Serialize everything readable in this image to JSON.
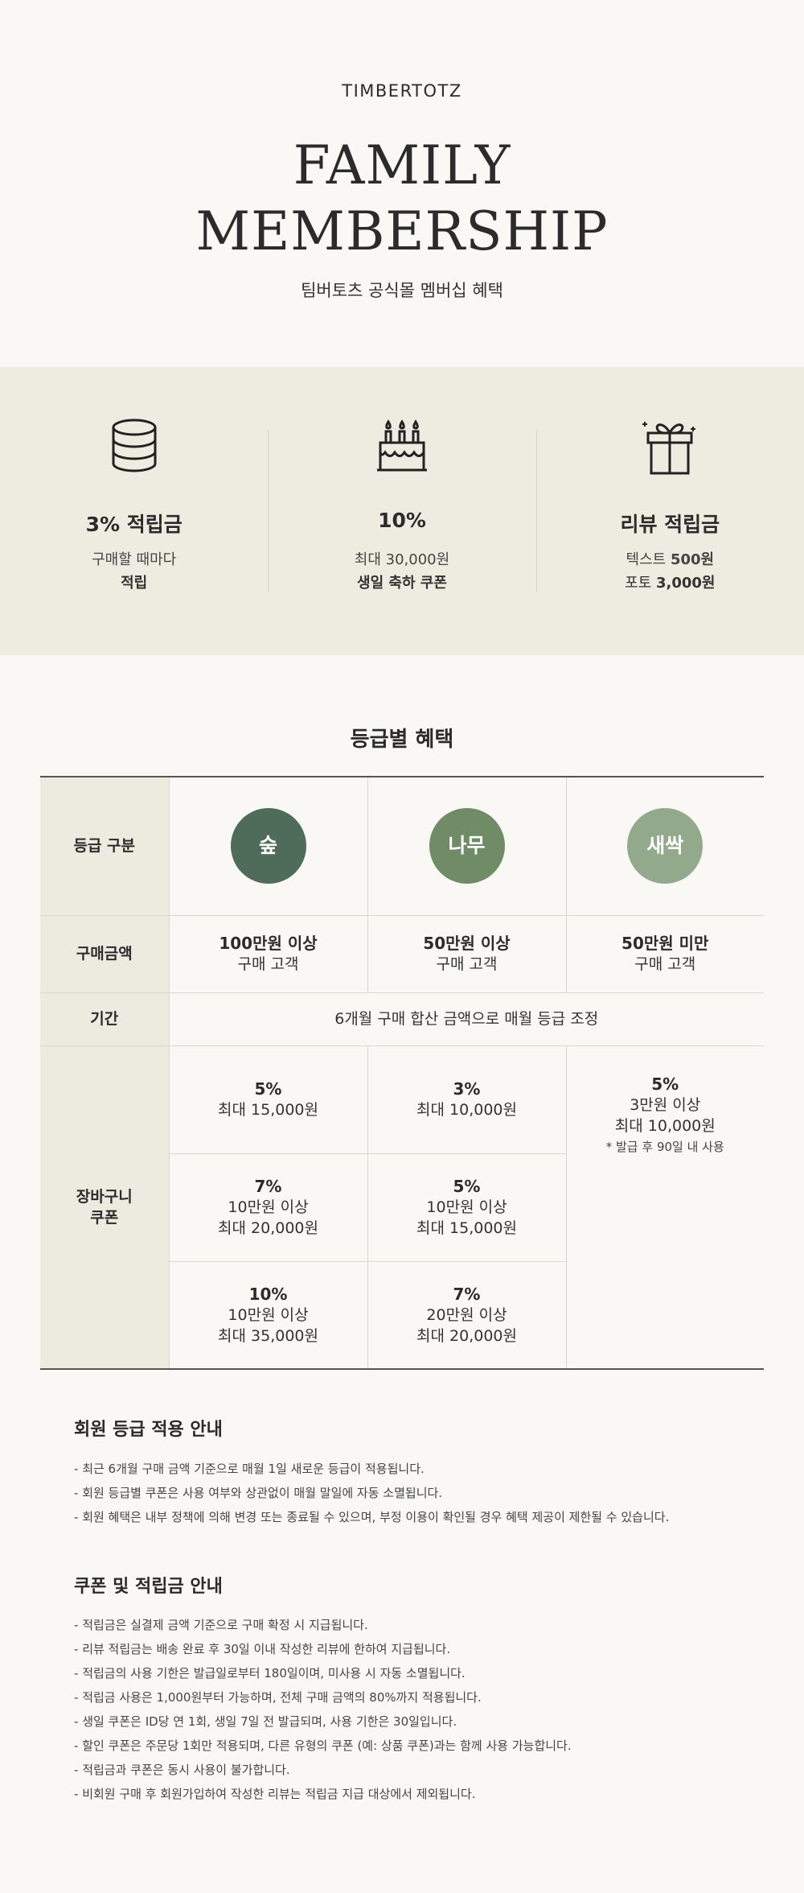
{
  "header": {
    "brand": "TIMBERTOTZ",
    "title_line1": "FAMILY",
    "title_line2": "MEMBERSHIP",
    "subtitle": "팀버토츠 공식몰 멤버십 혜택"
  },
  "benefits": [
    {
      "icon": "coin-stack-icon",
      "title": "3% 적립금",
      "line1": "구매할 때마다",
      "line2": "적립"
    },
    {
      "icon": "birthday-cake-icon",
      "title": "10%",
      "line1": "최대 30,000원",
      "line2": "생일 축하 쿠폰"
    },
    {
      "icon": "gift-box-icon",
      "title": "리뷰 적립금",
      "line1_label": "텍스트 ",
      "line1_value": "500원",
      "line2_label": "포토 ",
      "line2_value": "3,000원"
    }
  ],
  "grade_section": {
    "title": "등급별 혜택",
    "row_labels": {
      "grade": "등급 구분",
      "purchase": "구매금액",
      "period": "기간",
      "coupon_line1": "장바구니",
      "coupon_line2": "쿠폰"
    },
    "grades": [
      {
        "name": "숲",
        "color": "#4f6b5a",
        "amount": "100만원 이상",
        "amount_sub": "구매 고객"
      },
      {
        "name": "나무",
        "color": "#6f8c66",
        "amount": "50만원 이상",
        "amount_sub": "구매 고객"
      },
      {
        "name": "새싹",
        "color": "#93a98c",
        "amount": "50만원 미만",
        "amount_sub": "구매 고객"
      }
    ],
    "period_text": "6개월 구매 합산 금액으로 매월 등급 조정",
    "coupons": {
      "forest": [
        {
          "pct": "5%",
          "line1": "최대 15,000원"
        },
        {
          "pct": "7%",
          "line1": "10만원 이상",
          "line2": "최대 20,000원"
        },
        {
          "pct": "10%",
          "line1": "10만원 이상",
          "line2": "최대 35,000원"
        }
      ],
      "tree": [
        {
          "pct": "3%",
          "line1": "최대 10,000원"
        },
        {
          "pct": "5%",
          "line1": "10만원 이상",
          "line2": "최대 15,000원"
        },
        {
          "pct": "7%",
          "line1": "20만원 이상",
          "line2": "최대 20,000원"
        }
      ],
      "sprout": {
        "pct": "5%",
        "line1": "3만원 이상",
        "line2": "최대 10,000원",
        "note": "* 발급 후 90일 내 사용"
      }
    }
  },
  "notice_grade": {
    "title": "회원 등급 적용 안내",
    "items": [
      "최근 6개월 구매 금액 기준으로 매월 1일 새로운 등급이 적용됩니다.",
      "회원 등급별 쿠폰은 사용 여부와 상관없이 매월 말일에 자동 소멸됩니다.",
      "회원 혜택은 내부 정책에 의해 변경 또는 종료될 수 있으며, 부정 이용이 확인될 경우 혜택 제공이 제한될 수 있습니다."
    ]
  },
  "notice_coupon": {
    "title": "쿠폰 및 적립금 안내",
    "items": [
      "적립금은 실결제 금액 기준으로 구매 확정 시 지급됩니다.",
      "리뷰 적립금는 배송 완료 후 30일 이내 작성한 리뷰에 한하여 지급됩니다.",
      "적립금의 사용 기한은 발급일로부터 180일이며, 미사용 시 자동 소멸됩니다.",
      "적립금 사용은 1,000원부터 가능하며, 전체 구매 금액의 80%까지 적용됩니다.",
      "생일 쿠폰은 ID당 연 1회, 생일 7일 전 발급되며, 사용 기한은 30일입니다.",
      "할인 쿠폰은 주문당 1회만 적용되며, 다른 유형의 쿠폰 (예: 상품 쿠폰)과는 함께 사용 가능합니다.",
      "적립금과 쿠폰은 동시 사용이 불가합니다.",
      "비회원 구매 후 회원가입하여 작성한 리뷰는 적립금 지급 대상에서 제외됩니다."
    ]
  }
}
